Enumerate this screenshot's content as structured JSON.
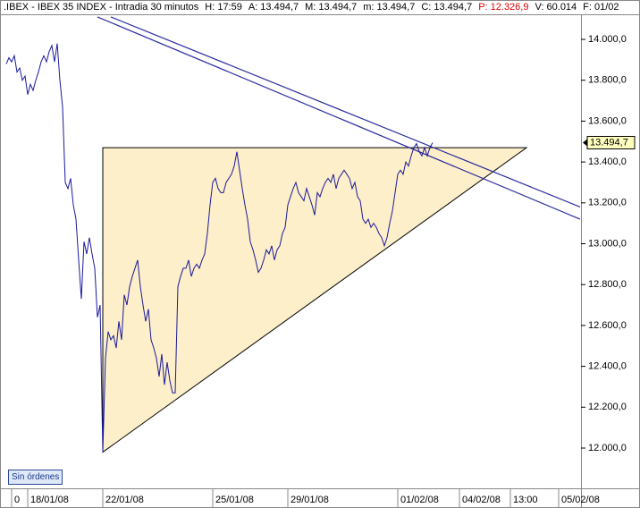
{
  "chart_data": {
    "type": "line",
    "title": ".IBEX - IBEX 35 INDEX - Intradia 30 minutos",
    "info": [
      {
        "text": "H: 17:59",
        "color": "#000000"
      },
      {
        "text": "A: 13.494,7",
        "color": "#000000"
      },
      {
        "text": "M: 13.494,7",
        "color": "#000000"
      },
      {
        "text": "m: 13.494,7",
        "color": "#000000"
      },
      {
        "text": "C: 13.494,7",
        "color": "#000000"
      },
      {
        "text": "P: 12.326,9",
        "color": "#e00000"
      },
      {
        "text": "V: 60.014",
        "color": "#000000"
      },
      {
        "text": "F: 01/02",
        "color": "#000000"
      }
    ],
    "button": "Sin órdenes",
    "color": "#1a1a9a",
    "x": [
      2,
      3,
      4,
      5,
      6,
      7,
      8,
      9,
      10,
      11,
      12,
      13,
      14,
      15,
      16,
      17,
      18,
      19,
      20,
      21,
      22,
      23,
      24,
      25,
      26,
      27,
      28,
      29,
      30,
      31,
      32,
      33,
      34,
      35,
      36,
      37,
      38,
      39,
      40,
      41,
      42,
      43,
      44,
      45,
      46,
      47,
      48,
      49,
      50,
      51,
      52,
      53,
      54,
      55,
      56,
      57,
      58,
      59,
      60,
      61,
      62,
      63,
      64,
      65,
      66,
      67,
      68,
      69,
      70,
      71,
      72,
      73,
      74,
      75,
      76,
      77,
      78,
      79,
      80,
      81,
      82,
      83,
      84,
      85,
      86,
      87,
      88,
      89,
      90,
      91,
      92,
      93,
      94,
      95,
      96,
      97,
      98,
      99,
      100,
      101,
      102,
      103,
      104,
      105,
      106,
      107,
      108,
      109,
      110,
      111,
      112,
      113,
      114,
      115,
      116,
      117,
      118,
      119,
      120,
      121,
      122,
      123,
      124,
      125,
      126,
      127,
      128,
      129,
      130,
      131,
      132,
      133,
      134,
      135,
      136,
      137,
      138,
      139,
      140,
      141,
      142,
      143,
      144,
      145,
      146,
      147,
      148,
      149,
      150,
      151,
      152,
      153,
      154,
      155,
      156,
      157,
      158,
      159,
      160,
      161
    ],
    "values": [
      13880,
      13910,
      13890,
      13920,
      13840,
      13860,
      13800,
      13820,
      13730,
      13780,
      13750,
      13800,
      13840,
      13890,
      13920,
      13890,
      13940,
      13970,
      13890,
      13980,
      13800,
      13670,
      13300,
      13270,
      13320,
      13190,
      13120,
      12920,
      12730,
      13010,
      12950,
      13030,
      12950,
      12880,
      12640,
      12700,
      11980,
      12440,
      12570,
      12530,
      12550,
      12490,
      12620,
      12530,
      12750,
      12700,
      12790,
      12840,
      12880,
      12920,
      12790,
      12700,
      12620,
      12680,
      12530,
      12490,
      12440,
      12350,
      12460,
      12310,
      12420,
      12330,
      12270,
      12270,
      12790,
      12840,
      12880,
      12880,
      12920,
      12840,
      12880,
      12900,
      12880,
      12920,
      12950,
      13050,
      13190,
      13300,
      13320,
      13270,
      13250,
      13250,
      13300,
      13320,
      13340,
      13380,
      13450,
      13360,
      13270,
      13190,
      13120,
      13010,
      12970,
      12920,
      12860,
      12880,
      12920,
      12970,
      12950,
      12990,
      12920,
      12970,
      12990,
      13050,
      13080,
      13190,
      13230,
      13270,
      13300,
      13250,
      13230,
      13210,
      13270,
      13230,
      13190,
      13140,
      13250,
      13230,
      13270,
      13300,
      13320,
      13300,
      13340,
      13270,
      13320,
      13340,
      13360,
      13340,
      13320,
      13270,
      13300,
      13230,
      13210,
      13120,
      13100,
      13120,
      13080,
      13100,
      13080,
      13050,
      13030,
      12990,
      13030,
      13100,
      13160,
      13250,
      13340,
      13360,
      13340,
      13400,
      13380,
      13430,
      13470,
      13490,
      13450,
      13430,
      13470,
      13430,
      13470,
      13494.7
    ],
    "last_price": {
      "value": 13494.7,
      "label": "13.494,7"
    },
    "triangle": {
      "x": [
        38,
        196,
        38
      ],
      "y": [
        13470,
        13470,
        11980
      ],
      "color": "#fdefc9"
    },
    "trendlines": [
      {
        "x": [
          36,
          216
        ],
        "y": [
          14110,
          13120
        ],
        "color": "#2c2ca0"
      },
      {
        "x": [
          41,
          216
        ],
        "y": [
          14110,
          13180
        ],
        "color": "#2c2ca0"
      }
    ],
    "xlim": [
      0,
      216
    ],
    "ylim": [
      11810,
      14110
    ],
    "xticks": [
      {
        "value": 4,
        "label": "0"
      },
      {
        "value": 10,
        "label": "18/01/08"
      },
      {
        "value": 38,
        "label": "22/01/08"
      },
      {
        "value": 79,
        "label": "25/01/08"
      },
      {
        "value": 107,
        "label": "29/01/08"
      },
      {
        "value": 148,
        "label": "01/02/08"
      },
      {
        "value": 171,
        "label": "04/02/08"
      },
      {
        "value": 190,
        "label": "13:00"
      },
      {
        "value": 208,
        "label": "05/02/08"
      }
    ],
    "yticks": [
      {
        "value": 12000,
        "label": "12.000,0"
      },
      {
        "value": 12200,
        "label": "12.200,0"
      },
      {
        "value": 12400,
        "label": "12.400,0"
      },
      {
        "value": 12600,
        "label": "12.600,0"
      },
      {
        "value": 12800,
        "label": "12.800,0"
      },
      {
        "value": 13000,
        "label": "13.000,0"
      },
      {
        "value": 13200,
        "label": "13.200,0"
      },
      {
        "value": 13400,
        "label": "13.400,0"
      },
      {
        "value": 13600,
        "label": "13.600,0"
      },
      {
        "value": 13800,
        "label": "13.800,0"
      },
      {
        "value": 14000,
        "label": "14.000,0"
      }
    ]
  }
}
